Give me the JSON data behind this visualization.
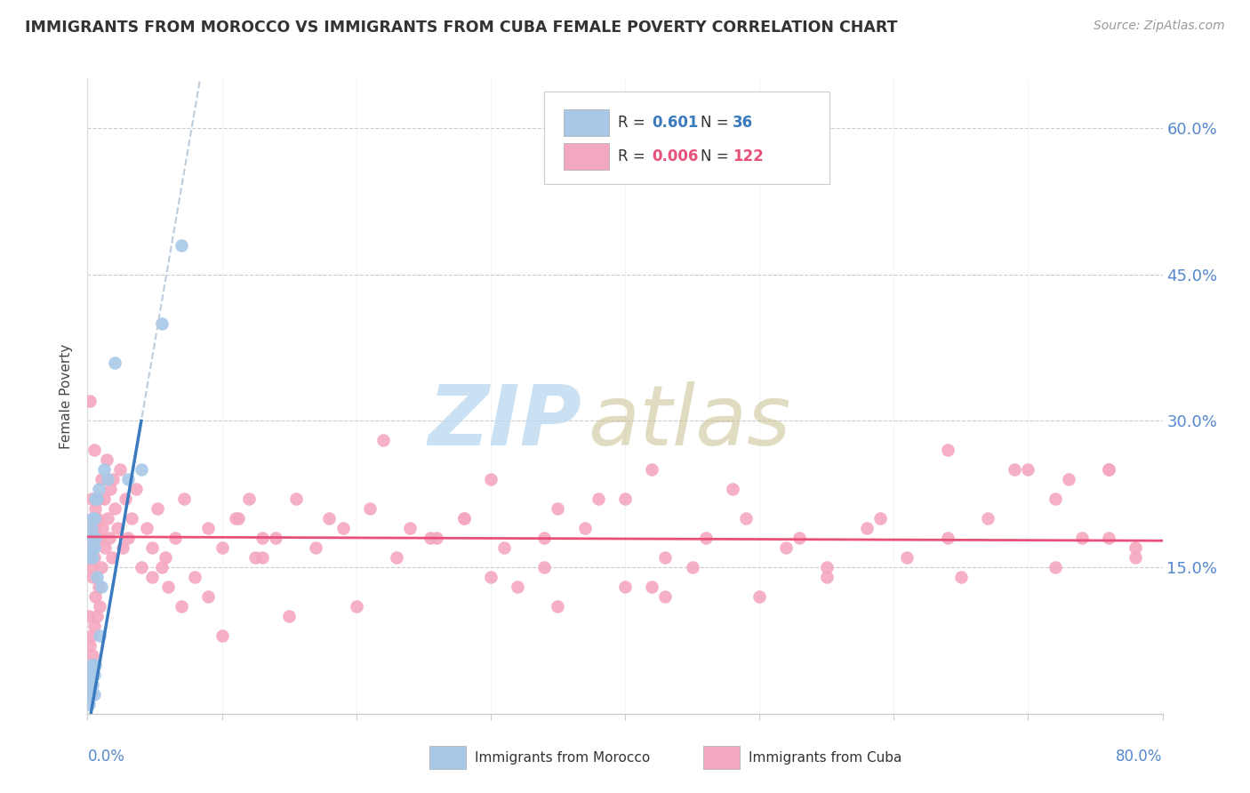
{
  "title": "IMMIGRANTS FROM MOROCCO VS IMMIGRANTS FROM CUBA FEMALE POVERTY CORRELATION CHART",
  "source": "Source: ZipAtlas.com",
  "ylabel": "Female Poverty",
  "yticks": [
    0.0,
    0.15,
    0.3,
    0.45,
    0.6
  ],
  "ytick_labels": [
    "",
    "15.0%",
    "30.0%",
    "45.0%",
    "60.0%"
  ],
  "xlim": [
    0.0,
    0.8
  ],
  "ylim": [
    0.0,
    0.65
  ],
  "morocco_R": 0.601,
  "morocco_N": 36,
  "cuba_R": 0.006,
  "cuba_N": 122,
  "morocco_color": "#a8c8e8",
  "cuba_color": "#f4a8c0",
  "morocco_line_color": "#3a7abf",
  "cuba_line_color": "#e8507a",
  "watermark_zip_color": "#c5dff5",
  "watermark_atlas_color": "#c8c8a0",
  "morocco_x": [
    0.001,
    0.001,
    0.001,
    0.002,
    0.002,
    0.002,
    0.002,
    0.003,
    0.003,
    0.003,
    0.003,
    0.003,
    0.004,
    0.004,
    0.004,
    0.004,
    0.004,
    0.005,
    0.005,
    0.005,
    0.005,
    0.006,
    0.006,
    0.006,
    0.007,
    0.007,
    0.008,
    0.009,
    0.01,
    0.012,
    0.015,
    0.02,
    0.03,
    0.04,
    0.055,
    0.07
  ],
  "morocco_y": [
    0.01,
    0.02,
    0.03,
    0.02,
    0.03,
    0.04,
    0.16,
    0.02,
    0.04,
    0.05,
    0.17,
    0.19,
    0.03,
    0.05,
    0.16,
    0.18,
    0.2,
    0.02,
    0.04,
    0.17,
    0.2,
    0.05,
    0.18,
    0.22,
    0.14,
    0.22,
    0.23,
    0.08,
    0.13,
    0.25,
    0.24,
    0.36,
    0.24,
    0.25,
    0.4,
    0.48
  ],
  "cuba_x": [
    0.001,
    0.002,
    0.002,
    0.002,
    0.003,
    0.003,
    0.003,
    0.004,
    0.004,
    0.004,
    0.005,
    0.005,
    0.005,
    0.005,
    0.006,
    0.006,
    0.006,
    0.007,
    0.007,
    0.008,
    0.008,
    0.009,
    0.009,
    0.01,
    0.01,
    0.011,
    0.012,
    0.013,
    0.014,
    0.015,
    0.016,
    0.017,
    0.018,
    0.019,
    0.02,
    0.022,
    0.024,
    0.026,
    0.028,
    0.03,
    0.033,
    0.036,
    0.04,
    0.044,
    0.048,
    0.052,
    0.058,
    0.065,
    0.072,
    0.08,
    0.09,
    0.1,
    0.112,
    0.125,
    0.14,
    0.155,
    0.17,
    0.19,
    0.21,
    0.23,
    0.255,
    0.28,
    0.31,
    0.34,
    0.37,
    0.4,
    0.43,
    0.46,
    0.49,
    0.52,
    0.55,
    0.58,
    0.61,
    0.64,
    0.67,
    0.7,
    0.72,
    0.74,
    0.76,
    0.78
  ],
  "cuba_y": [
    0.1,
    0.07,
    0.17,
    0.32,
    0.08,
    0.15,
    0.22,
    0.06,
    0.14,
    0.2,
    0.09,
    0.16,
    0.19,
    0.27,
    0.12,
    0.18,
    0.21,
    0.1,
    0.2,
    0.13,
    0.22,
    0.11,
    0.18,
    0.15,
    0.24,
    0.19,
    0.22,
    0.17,
    0.26,
    0.2,
    0.18,
    0.23,
    0.16,
    0.24,
    0.21,
    0.19,
    0.25,
    0.17,
    0.22,
    0.18,
    0.2,
    0.23,
    0.15,
    0.19,
    0.17,
    0.21,
    0.16,
    0.18,
    0.22,
    0.14,
    0.19,
    0.17,
    0.2,
    0.16,
    0.18,
    0.22,
    0.17,
    0.19,
    0.21,
    0.16,
    0.18,
    0.2,
    0.17,
    0.15,
    0.19,
    0.22,
    0.16,
    0.18,
    0.2,
    0.17,
    0.15,
    0.19,
    0.16,
    0.18,
    0.2,
    0.25,
    0.22,
    0.18,
    0.25,
    0.17
  ],
  "cuba_extra_x": [
    0.1,
    0.15,
    0.2,
    0.22,
    0.26,
    0.3,
    0.34,
    0.38,
    0.42,
    0.48,
    0.53,
    0.59,
    0.64,
    0.69,
    0.73,
    0.76,
    0.35,
    0.28,
    0.24,
    0.18,
    0.13,
    0.09,
    0.07,
    0.06,
    0.055,
    0.048,
    0.3,
    0.45,
    0.55,
    0.65,
    0.72,
    0.76,
    0.78,
    0.4,
    0.32,
    0.42,
    0.5,
    0.35,
    0.43,
    0.12,
    0.11,
    0.13
  ],
  "cuba_extra_y": [
    0.08,
    0.1,
    0.11,
    0.28,
    0.18,
    0.24,
    0.18,
    0.22,
    0.25,
    0.23,
    0.18,
    0.2,
    0.27,
    0.25,
    0.24,
    0.25,
    0.21,
    0.2,
    0.19,
    0.2,
    0.16,
    0.12,
    0.11,
    0.13,
    0.15,
    0.14,
    0.14,
    0.15,
    0.14,
    0.14,
    0.15,
    0.18,
    0.16,
    0.13,
    0.13,
    0.13,
    0.12,
    0.11,
    0.12,
    0.22,
    0.2,
    0.18
  ]
}
